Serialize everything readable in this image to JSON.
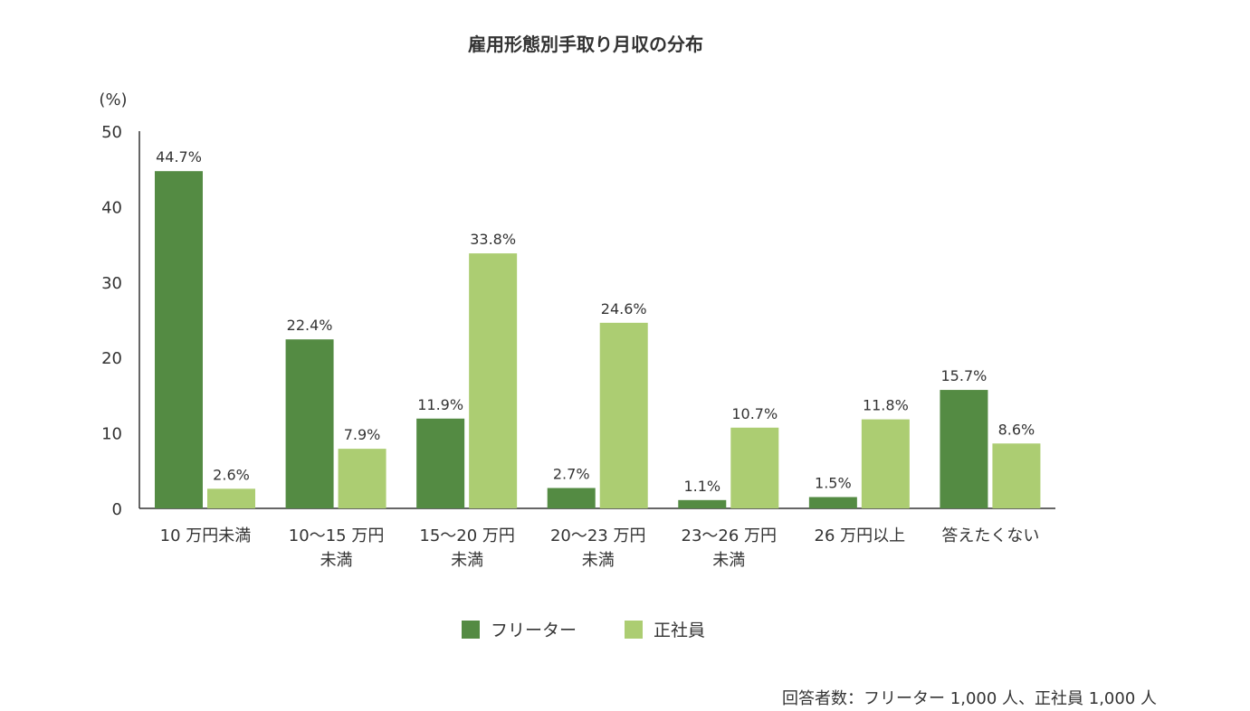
{
  "chart_data": {
    "type": "bar",
    "title": "雇用形態別手取り月収の分布",
    "ylabel": "(%)",
    "ylim": [
      0,
      50
    ],
    "yticks": [
      0,
      10,
      20,
      30,
      40,
      50
    ],
    "grid": false,
    "legend_position": "bottom",
    "categories": [
      [
        "10 万円未満"
      ],
      [
        "10〜15 万円",
        "未満"
      ],
      [
        "15〜20 万円",
        "未満"
      ],
      [
        "20〜23 万円",
        "未満"
      ],
      [
        "23〜26 万円",
        "未満"
      ],
      [
        "26 万円以上"
      ],
      [
        "答えたくない"
      ]
    ],
    "series": [
      {
        "name": "フリーター",
        "color": "#548b43",
        "values": [
          44.7,
          22.4,
          11.9,
          2.7,
          1.1,
          1.5,
          15.7
        ]
      },
      {
        "name": "正社員",
        "color": "#accd72",
        "values": [
          2.6,
          7.9,
          33.8,
          24.6,
          10.7,
          11.8,
          8.6
        ]
      }
    ],
    "note": "回答者数：フリーター 1,000 人、正社員 1,000 人"
  }
}
